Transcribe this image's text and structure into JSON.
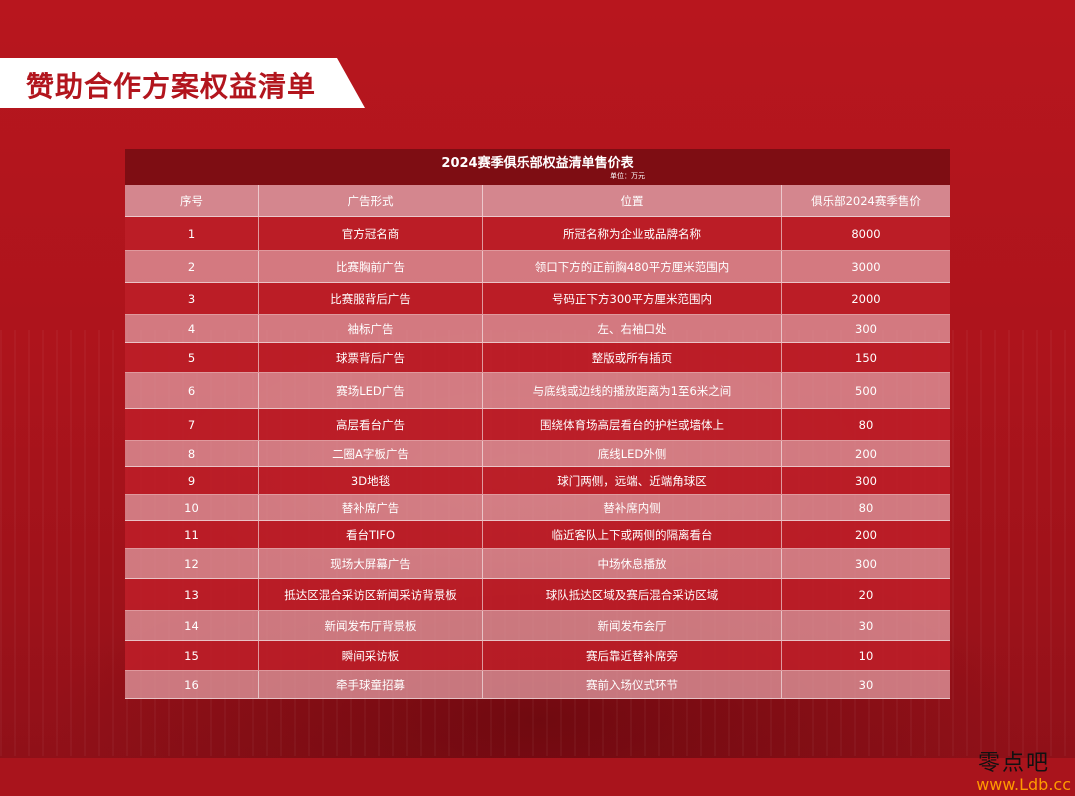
{
  "title": "赞助合作方案权益清单",
  "table": {
    "title": "2024赛季俱乐部权益清单售价表",
    "unit": "单位：万元",
    "headers": [
      "序号",
      "广告形式",
      "位置",
      "俱乐部2024赛季售价"
    ],
    "rows": [
      [
        "1",
        "官方冠名商",
        "所冠名称为企业或品牌名称",
        "8000"
      ],
      [
        "2",
        "比赛胸前广告",
        "领口下方的正前胸480平方厘米范围内",
        "3000"
      ],
      [
        "3",
        "比赛服背后广告",
        "号码正下方300平方厘米范围内",
        "2000"
      ],
      [
        "4",
        "袖标广告",
        "左、右袖口处",
        "300"
      ],
      [
        "5",
        "球票背后广告",
        "整版或所有插页",
        "150"
      ],
      [
        "6",
        "赛场LED广告",
        "与底线或边线的播放距离为1至6米之间",
        "500"
      ],
      [
        "7",
        "高层看台广告",
        "围绕体育场高层看台的护栏或墙体上",
        "80"
      ],
      [
        "8",
        "二圈A字板广告",
        "底线LED外侧",
        "200"
      ],
      [
        "9",
        "3D地毯",
        "球门两侧，远端、近端角球区",
        "300"
      ],
      [
        "10",
        "替补席广告",
        "替补席内侧",
        "80"
      ],
      [
        "11",
        "看台TIFO",
        "临近客队上下或两侧的隔离看台",
        "200"
      ],
      [
        "12",
        "现场大屏幕广告",
        "中场休息播放",
        "300"
      ],
      [
        "13",
        "抵达区混合采访区新闻采访背景板",
        "球队抵达区域及赛后混合采访区域",
        "20"
      ],
      [
        "14",
        "新闻发布厅背景板",
        "新闻发布会厅",
        "30"
      ],
      [
        "15",
        "瞬间采访板",
        "赛后靠近替补席旁",
        "10"
      ],
      [
        "16",
        "牵手球童招募",
        "赛前入场仪式环节",
        "30"
      ]
    ]
  },
  "watermark": {
    "text": "零点吧",
    "url": "www.Ldb.cc"
  }
}
